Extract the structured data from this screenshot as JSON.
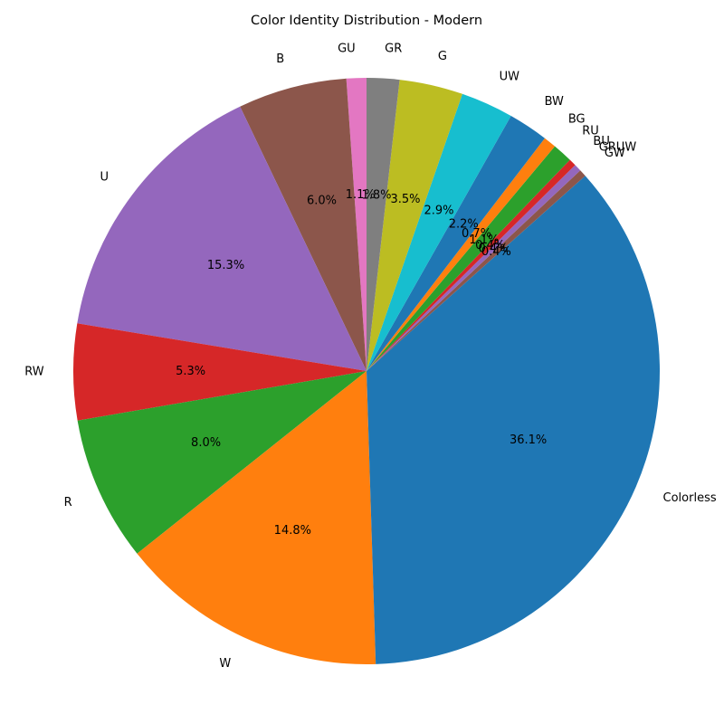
{
  "chart_data": {
    "type": "pie",
    "title": "Color Identity Distribution - Modern",
    "start_angle_deg": 90,
    "direction": "counterclockwise",
    "legend": "none",
    "slices": [
      {
        "label": "GU",
        "value": 1.1,
        "pct_label": "1.1%",
        "color": "#e377c2"
      },
      {
        "label": "B",
        "value": 6.0,
        "pct_label": "6.0%",
        "color": "#8c564b"
      },
      {
        "label": "U",
        "value": 15.3,
        "pct_label": "15.3%",
        "color": "#9467bd"
      },
      {
        "label": "RW",
        "value": 5.3,
        "pct_label": "5.3%",
        "color": "#d62728"
      },
      {
        "label": "R",
        "value": 8.0,
        "pct_label": "8.0%",
        "color": "#2ca02c"
      },
      {
        "label": "W",
        "value": 14.8,
        "pct_label": "14.8%",
        "color": "#ff7f0e"
      },
      {
        "label": "Colorless",
        "value": 36.1,
        "pct_label": "36.1%",
        "color": "#1f77b4"
      },
      {
        "label": "GW",
        "value": 0.4,
        "pct_label": "0.4%",
        "color": "#8c564b"
      },
      {
        "label": "GRUW",
        "value": 0.4,
        "pct_label": "0.4%",
        "color": "#9467bd"
      },
      {
        "label": "BU",
        "value": 0.4,
        "pct_label": "0.4%",
        "color": "#d62728"
      },
      {
        "label": "RU",
        "value": 1.1,
        "pct_label": "1.1%",
        "color": "#2ca02c"
      },
      {
        "label": "BG",
        "value": 0.7,
        "pct_label": "0.7%",
        "color": "#ff7f0e"
      },
      {
        "label": "BW",
        "value": 2.2,
        "pct_label": "2.2%",
        "color": "#1f77b4"
      },
      {
        "label": "UW",
        "value": 2.9,
        "pct_label": "2.9%",
        "color": "#17becf"
      },
      {
        "label": "G",
        "value": 3.5,
        "pct_label": "3.5%",
        "color": "#bcbd22"
      },
      {
        "label": "GR",
        "value": 1.8,
        "pct_label": "1.8%",
        "color": "#7f7f7f"
      }
    ]
  }
}
